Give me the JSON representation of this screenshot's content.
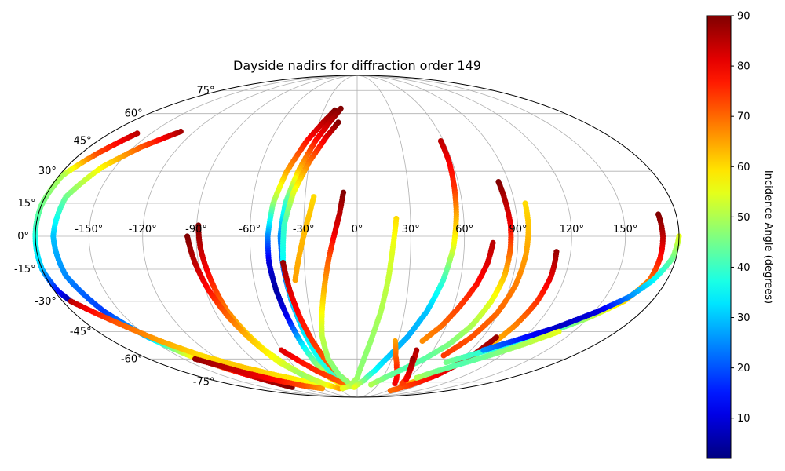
{
  "chart_data": {
    "type": "scatter",
    "projection": "mollweide",
    "title": "Dayside nadirs for diffraction order 149",
    "xlabel": "",
    "ylabel": "",
    "grid": true,
    "lon_ticks": [
      -150,
      -120,
      -90,
      -60,
      -30,
      0,
      30,
      60,
      90,
      120,
      150
    ],
    "lon_tick_labels": [
      "-150°",
      "-120°",
      "-90°",
      "-60°",
      "-30°",
      "0°",
      "30°",
      "60°",
      "90°",
      "120°",
      "150°"
    ],
    "lat_ticks": [
      -75,
      -60,
      -45,
      -30,
      -15,
      0,
      15,
      30,
      45,
      60,
      75
    ],
    "lat_tick_labels": [
      "-75°",
      "-60°",
      "-45°",
      "-30°",
      "-15°",
      "0°",
      "15°",
      "30°",
      "45°",
      "60°",
      "75°"
    ],
    "colorbar": {
      "label": "Incidence Angle (degrees)",
      "colormap": "jet",
      "min": 2,
      "max": 90,
      "ticks": [
        10,
        20,
        30,
        40,
        50,
        60,
        70,
        80,
        90
      ],
      "tick_labels": [
        "10",
        "20",
        "30",
        "40",
        "50",
        "60",
        "70",
        "80",
        "90"
      ]
    },
    "series": [
      {
        "points": [
          [
            -160,
            49,
            85
          ],
          [
            -170,
            38,
            72
          ],
          [
            -178,
            28,
            50
          ],
          [
            -180,
            14,
            45
          ],
          [
            -180,
            0,
            38
          ],
          [
            -180,
            -15,
            30
          ],
          [
            -178,
            -25,
            15
          ],
          [
            -175,
            -30,
            5
          ]
        ]
      },
      {
        "points": [
          [
            -130,
            50,
            87
          ],
          [
            -145,
            42,
            72
          ],
          [
            -158,
            32,
            58
          ],
          [
            -168,
            18,
            45
          ],
          [
            -170,
            0,
            30
          ],
          [
            -168,
            -18,
            25
          ],
          [
            -160,
            -35,
            18
          ],
          [
            -150,
            -48,
            30
          ],
          [
            -140,
            -58,
            55
          ],
          [
            -128,
            -66,
            75
          ],
          [
            -115,
            -73,
            85
          ],
          [
            -105,
            -79,
            90
          ]
        ]
      },
      {
        "points": [
          [
            -175,
            -30,
            85
          ],
          [
            -160,
            -40,
            72
          ],
          [
            -145,
            -50,
            65
          ],
          [
            -130,
            -58,
            60
          ],
          [
            -110,
            -65,
            62
          ],
          [
            -90,
            -70,
            60
          ],
          [
            -70,
            -74,
            58
          ],
          [
            -50,
            -77,
            55
          ]
        ]
      },
      {
        "points": [
          [
            -140,
            -60,
            88
          ],
          [
            -120,
            -68,
            83
          ],
          [
            -100,
            -74,
            78
          ],
          [
            -80,
            -78,
            72
          ],
          [
            -60,
            -80,
            66
          ]
        ]
      },
      {
        "points": [
          [
            -89,
            5,
            90
          ],
          [
            -88,
            -5,
            85
          ],
          [
            -86,
            -15,
            80
          ],
          [
            -84,
            -25,
            74
          ],
          [
            -82,
            -35,
            68
          ],
          [
            -78,
            -45,
            62
          ],
          [
            -73,
            -55,
            57
          ],
          [
            -65,
            -65,
            53
          ],
          [
            -55,
            -73,
            60
          ]
        ]
      },
      {
        "points": [
          [
            -95,
            0,
            90
          ],
          [
            -92,
            -12,
            85
          ],
          [
            -88,
            -25,
            78
          ],
          [
            -83,
            -38,
            70
          ],
          [
            -77,
            -50,
            62
          ],
          [
            -70,
            -62,
            55
          ],
          [
            -60,
            -70,
            48
          ],
          [
            -45,
            -77,
            55
          ],
          [
            -30,
            -80,
            65
          ]
        ]
      },
      {
        "points": [
          [
            -20,
            62,
            90
          ],
          [
            -27,
            55,
            85
          ],
          [
            -35,
            45,
            78
          ],
          [
            -43,
            30,
            65
          ],
          [
            -48,
            15,
            48
          ],
          [
            -50,
            0,
            25
          ],
          [
            -50,
            -12,
            10
          ],
          [
            -48,
            -25,
            5
          ],
          [
            -45,
            -38,
            12
          ],
          [
            -42,
            -50,
            30
          ],
          [
            -38,
            -62,
            45
          ],
          [
            -32,
            -72,
            55
          ],
          [
            -20,
            -78,
            60
          ]
        ]
      },
      {
        "points": [
          [
            -15,
            63,
            90
          ],
          [
            -22,
            55,
            85
          ],
          [
            -29,
            45,
            78
          ],
          [
            -36,
            30,
            62
          ],
          [
            -41,
            15,
            40
          ],
          [
            -43,
            0,
            25
          ],
          [
            -42,
            -15,
            18
          ],
          [
            -40,
            -30,
            25
          ],
          [
            -37,
            -45,
            33
          ],
          [
            -33,
            -60,
            38
          ],
          [
            -25,
            -72,
            42
          ]
        ]
      },
      {
        "points": [
          [
            -15,
            55,
            90
          ],
          [
            -22,
            47,
            82
          ],
          [
            -30,
            35,
            70
          ],
          [
            -37,
            20,
            55
          ],
          [
            -41,
            5,
            40
          ],
          [
            -42,
            -12,
            35
          ],
          [
            -40,
            -28,
            32
          ],
          [
            -37,
            -42,
            32
          ],
          [
            -33,
            -55,
            35
          ],
          [
            -28,
            -67,
            38
          ],
          [
            -20,
            -75,
            42
          ]
        ]
      },
      {
        "points": [
          [
            -60,
            -55,
            82
          ],
          [
            -50,
            -62,
            78
          ],
          [
            -40,
            -68,
            75
          ],
          [
            -25,
            -74,
            72
          ],
          [
            -10,
            -78,
            68
          ]
        ]
      },
      {
        "points": [
          [
            -42,
            -12,
            88
          ],
          [
            -40,
            -25,
            82
          ],
          [
            -37,
            -38,
            78
          ],
          [
            -33,
            -50,
            75
          ],
          [
            -28,
            -60,
            72
          ],
          [
            -20,
            -70,
            70
          ],
          [
            -8,
            -78,
            66
          ]
        ]
      },
      {
        "points": [
          [
            -8,
            20,
            90
          ],
          [
            -10,
            10,
            85
          ],
          [
            -13,
            0,
            80
          ],
          [
            -16,
            -10,
            72
          ],
          [
            -19,
            -22,
            65
          ],
          [
            -22,
            -34,
            58
          ],
          [
            -25,
            -47,
            52
          ],
          [
            -25,
            -60,
            48
          ],
          [
            -20,
            -70,
            46
          ],
          [
            -10,
            -77,
            48
          ]
        ]
      },
      {
        "points": [
          [
            -25,
            18,
            60
          ],
          [
            -27,
            10,
            62
          ],
          [
            -30,
            0,
            63
          ],
          [
            -33,
            -10,
            64
          ],
          [
            -36,
            -20,
            65
          ]
        ]
      },
      {
        "points": [
          [
            22,
            8,
            60
          ],
          [
            20,
            -5,
            55
          ],
          [
            18,
            -20,
            52
          ],
          [
            15,
            -35,
            50
          ],
          [
            10,
            -50,
            48
          ],
          [
            5,
            -62,
            47
          ],
          [
            0,
            -72,
            48
          ],
          [
            -10,
            -78,
            50
          ],
          [
            -25,
            -80,
            55
          ]
        ]
      },
      {
        "points": [
          [
            58,
            45,
            85
          ],
          [
            58,
            35,
            80
          ],
          [
            57,
            22,
            75
          ],
          [
            56,
            10,
            65
          ],
          [
            54,
            -5,
            55
          ],
          [
            50,
            -20,
            40
          ],
          [
            44,
            -35,
            30
          ],
          [
            36,
            -48,
            28
          ],
          [
            27,
            -58,
            30
          ],
          [
            18,
            -67,
            35
          ],
          [
            8,
            -74,
            45
          ],
          [
            -5,
            -79,
            55
          ]
        ]
      },
      {
        "points": [
          [
            28,
            -50,
            65
          ],
          [
            32,
            -58,
            70
          ],
          [
            38,
            -65,
            75
          ],
          [
            45,
            -71,
            78
          ],
          [
            52,
            -76,
            80
          ]
        ]
      },
      {
        "points": [
          [
            84,
            25,
            90
          ],
          [
            85,
            15,
            85
          ],
          [
            86,
            5,
            80
          ],
          [
            86,
            -5,
            72
          ],
          [
            85,
            -18,
            63
          ],
          [
            82,
            -30,
            55
          ],
          [
            77,
            -42,
            50
          ],
          [
            69,
            -52,
            46
          ],
          [
            58,
            -60,
            43
          ],
          [
            46,
            -66,
            42
          ],
          [
            32,
            -72,
            45
          ],
          [
            20,
            -77,
            50
          ]
        ]
      },
      {
        "points": [
          [
            96,
            15,
            60
          ],
          [
            96,
            5,
            62
          ],
          [
            95,
            -8,
            65
          ],
          [
            93,
            -22,
            68
          ],
          [
            89,
            -36,
            70
          ],
          [
            82,
            -48,
            72
          ],
          [
            72,
            -58,
            74
          ]
        ]
      },
      {
        "points": [
          [
            76,
            -3,
            85
          ],
          [
            74,
            -12,
            82
          ],
          [
            70,
            -22,
            78
          ],
          [
            64,
            -32,
            74
          ],
          [
            57,
            -42,
            70
          ],
          [
            48,
            -50,
            67
          ]
        ]
      },
      {
        "points": [
          [
            112,
            -7,
            88
          ],
          [
            112,
            -18,
            82
          ],
          [
            110,
            -30,
            75
          ],
          [
            106,
            -42,
            68
          ],
          [
            100,
            -54,
            62
          ],
          [
            92,
            -64,
            60
          ],
          [
            80,
            -72,
            62
          ],
          [
            67,
            -78,
            64
          ]
        ]
      },
      {
        "points": [
          [
            100,
            -48,
            88
          ],
          [
            95,
            -60,
            85
          ],
          [
            88,
            -70,
            80
          ],
          [
            78,
            -77,
            75
          ],
          [
            66,
            -82,
            70
          ]
        ]
      },
      {
        "points": [
          [
            47,
            -55,
            86
          ],
          [
            50,
            -62,
            82
          ],
          [
            55,
            -69,
            78
          ],
          [
            62,
            -76,
            74
          ]
        ]
      },
      {
        "points": [
          [
            48,
            -60,
            88
          ],
          [
            53,
            -67,
            84
          ],
          [
            60,
            -73,
            80
          ]
        ]
      },
      {
        "points": [
          [
            170,
            10,
            90
          ],
          [
            171,
            0,
            85
          ],
          [
            171,
            -10,
            78
          ],
          [
            170,
            -20,
            70
          ],
          [
            163,
            -30,
            60
          ],
          [
            150,
            -38,
            50
          ],
          [
            135,
            -45,
            40
          ],
          [
            118,
            -51,
            35
          ],
          [
            100,
            -56,
            38
          ],
          [
            80,
            -62,
            45
          ]
        ]
      },
      {
        "points": [
          [
            180,
            0,
            55
          ],
          [
            178,
            -10,
            45
          ],
          [
            172,
            -20,
            35
          ],
          [
            164,
            -28,
            25
          ],
          [
            152,
            -35,
            10
          ],
          [
            135,
            -43,
            8
          ],
          [
            118,
            -49,
            15
          ],
          [
            100,
            -55,
            25
          ]
        ]
      },
      {
        "points": [
          [
            140,
            -45,
            55
          ],
          [
            125,
            -52,
            50
          ],
          [
            110,
            -58,
            45
          ],
          [
            95,
            -63,
            42
          ],
          [
            80,
            -68,
            45
          ],
          [
            70,
            -72,
            50
          ]
        ]
      }
    ]
  }
}
